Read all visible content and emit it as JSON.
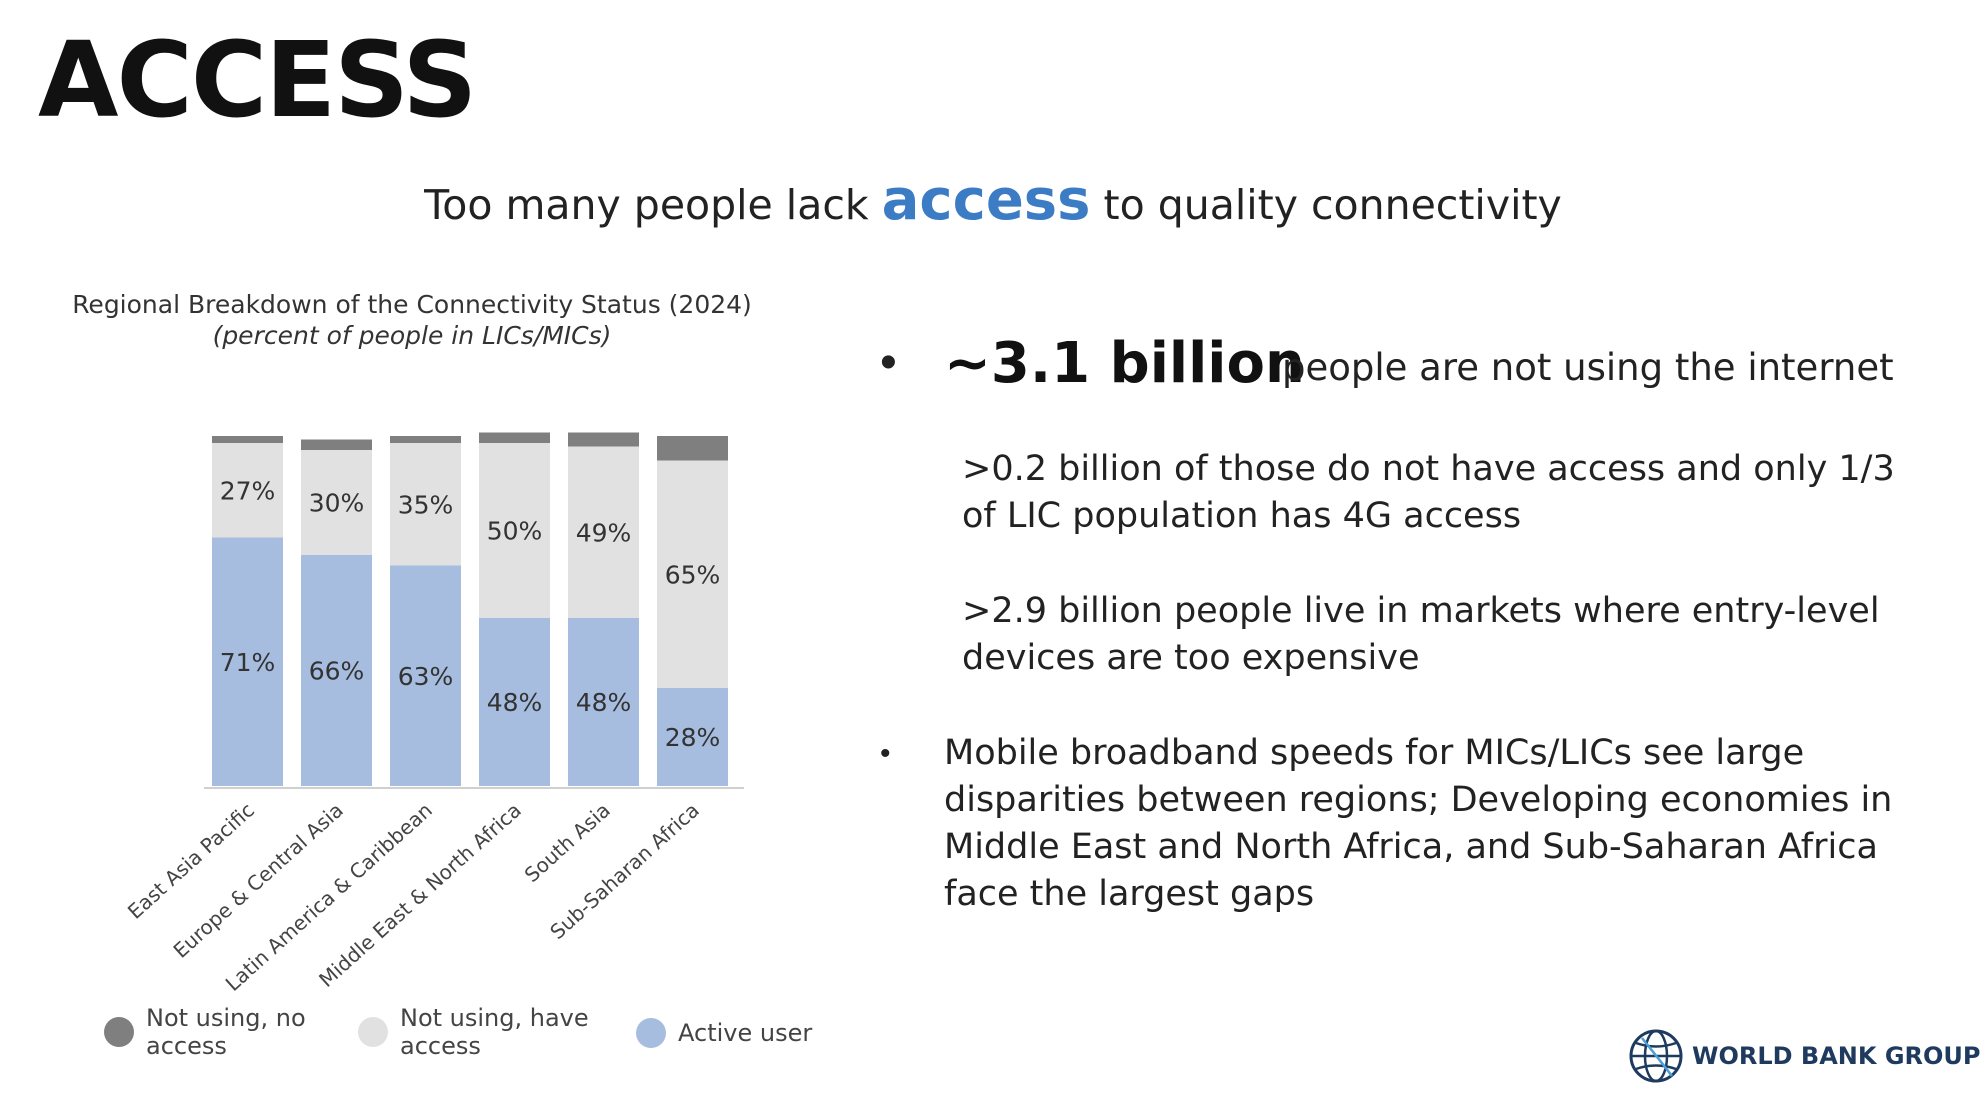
{
  "slide": {
    "heading": "ACCESS",
    "subtitle": {
      "before": "Too many people lack ",
      "highlight": "access",
      "after": " to quality connectivity"
    },
    "accent_color": "#3B7CC4"
  },
  "chart_data": {
    "type": "bar",
    "stacked": true,
    "title": "Regional Breakdown of the Connectivity Status (2024)",
    "subtitle": "(percent of people in LICs/MICs)",
    "categories": [
      "East Asia Pacific",
      "Europe & Central Asia",
      "Latin America & Caribbean",
      "Middle East & North Africa",
      "South Asia",
      "Sub-Saharan Africa"
    ],
    "series": [
      {
        "name": "Active user",
        "values": [
          71,
          66,
          63,
          48,
          48,
          28
        ],
        "labels": [
          "71%",
          "66%",
          "63%",
          "48%",
          "48%",
          "28%"
        ],
        "color": "#A7BDE0"
      },
      {
        "name": "Not using, have access",
        "values": [
          27,
          30,
          35,
          50,
          49,
          65
        ],
        "labels": [
          "27%",
          "30%",
          "35%",
          "50%",
          "49%",
          "65%"
        ],
        "color": "#E1E1E1"
      },
      {
        "name": "Not using, no access",
        "values": [
          2,
          3,
          2,
          3,
          4,
          7
        ],
        "color": "#7F7F7F"
      }
    ],
    "ylim": [
      0,
      100
    ],
    "grid": false,
    "legend_position": "bottom"
  },
  "legend": [
    {
      "label_line1": "Not using, no",
      "label_line2": "access",
      "color": "#7F7F7F"
    },
    {
      "label_line1": "Not using, have",
      "label_line2": "access",
      "color": "#E1E1E1"
    },
    {
      "label_line1": "Active user",
      "label_line2": "",
      "color": "#A7BDE0"
    }
  ],
  "bullets": {
    "b1_marker": "•",
    "b1_big": "~3.1 billion",
    "b1_rest": "people are not using the internet",
    "sub1_line1": ">0.2 billion of those do not have access and only 1/3",
    "sub1_line2": "of LIC population has 4G access",
    "sub2_line1": ">2.9 billion people live in markets where entry-level",
    "sub2_line2": "devices are too expensive",
    "b2_marker": "•",
    "b2_text": "Mobile broadband speeds for MICs/LICs see large disparities between regions; Developing economies in Middle East and North Africa, and Sub-Saharan Africa face the largest gaps"
  },
  "logo": {
    "text": "WORLD BANK GROUP",
    "icon": "globe-icon"
  }
}
